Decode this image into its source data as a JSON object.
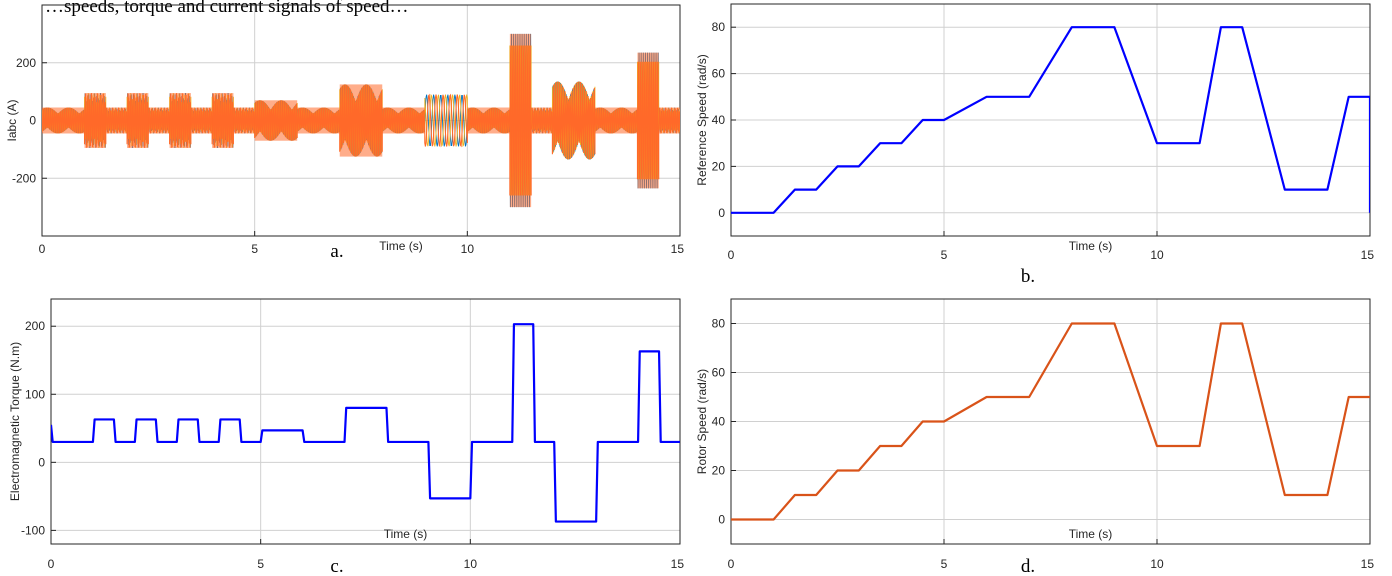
{
  "figure": {
    "top_caption": "…speeds, torque and current signals of speed…"
  },
  "chart_data": [
    {
      "id": "a",
      "type": "line",
      "caption": "a.",
      "xlabel": "Time (s)",
      "ylabel": "Iabc (A)",
      "xlim": [
        0,
        15
      ],
      "ylim": [
        -400,
        400
      ],
      "xticks": [
        0,
        5,
        10,
        15
      ],
      "yticks": [
        -200,
        0,
        200
      ],
      "grid": true,
      "colors": {
        "phase_a": "#ff6929",
        "phase_b": "#0072bd",
        "phase_c": "#edb120"
      },
      "series": [
        {
          "name": "",
          "envelope_amplitude": [
            {
              "x": [
                0,
                1
              ],
              "amp": 45
            },
            {
              "x": [
                1,
                1.5
              ],
              "amp": 95
            },
            {
              "x": [
                1.5,
                2
              ],
              "amp": 45
            },
            {
              "x": [
                2,
                2.5
              ],
              "amp": 95
            },
            {
              "x": [
                2.5,
                3
              ],
              "amp": 45
            },
            {
              "x": [
                3,
                3.5
              ],
              "amp": 95
            },
            {
              "x": [
                3.5,
                4
              ],
              "amp": 45
            },
            {
              "x": [
                4,
                4.5
              ],
              "amp": 95
            },
            {
              "x": [
                4.5,
                5
              ],
              "amp": 45
            },
            {
              "x": [
                5,
                6
              ],
              "amp": 70
            },
            {
              "x": [
                6,
                7
              ],
              "amp": 45
            },
            {
              "x": [
                7,
                8
              ],
              "amp": 125
            },
            {
              "x": [
                8,
                9
              ],
              "amp": 45
            },
            {
              "x": [
                9,
                10
              ],
              "amp": 90
            },
            {
              "x": [
                10,
                11
              ],
              "amp": 45
            },
            {
              "x": [
                11,
                11.5
              ],
              "amp": 300
            },
            {
              "x": [
                11.5,
                12
              ],
              "amp": 45
            },
            {
              "x": [
                12,
                13
              ],
              "amp": 135
            },
            {
              "x": [
                13,
                14
              ],
              "amp": 45
            },
            {
              "x": [
                14,
                14.5
              ],
              "amp": 235
            },
            {
              "x": [
                14.5,
                15
              ],
              "amp": 45
            }
          ]
        }
      ]
    },
    {
      "id": "b",
      "type": "line",
      "caption": "b.",
      "xlabel": "Time (s)",
      "ylabel": "Reference Speed (rad/s)",
      "xlim": [
        0,
        15
      ],
      "ylim": [
        -10,
        90
      ],
      "xticks": [
        0,
        5,
        10,
        15
      ],
      "yticks": [
        0,
        20,
        40,
        60,
        80
      ],
      "grid": true,
      "color": "#0000ff",
      "series": [
        {
          "name": "",
          "x": [
            0,
            1,
            1.5,
            2,
            2.5,
            3,
            3.5,
            4,
            4.5,
            5,
            6,
            7,
            8,
            9,
            10,
            11,
            11.5,
            12,
            13,
            14,
            14.5,
            15,
            15
          ],
          "y": [
            0,
            0,
            10,
            10,
            20,
            20,
            30,
            30,
            40,
            40,
            50,
            50,
            80,
            80,
            30,
            30,
            80,
            80,
            10,
            10,
            50,
            50,
            0
          ]
        }
      ]
    },
    {
      "id": "c",
      "type": "line",
      "caption": "c.",
      "xlabel": "Time (s)",
      "ylabel": "Electromagnetic Torque (N.m)",
      "xlim": [
        0,
        15
      ],
      "ylim": [
        -120,
        240
      ],
      "xticks": [
        0,
        5,
        10,
        15
      ],
      "yticks": [
        -100,
        0,
        100,
        200
      ],
      "grid": true,
      "color": "#0000ff",
      "series": [
        {
          "name": "",
          "x": [
            0,
            0.04,
            1,
            1.04,
            1.5,
            1.54,
            2,
            2.04,
            2.5,
            2.54,
            3,
            3.04,
            3.5,
            3.54,
            4,
            4.04,
            4.5,
            4.54,
            5,
            5.04,
            6,
            6.04,
            7,
            7.04,
            8,
            8.04,
            9,
            9.04,
            10,
            10.04,
            11,
            11.04,
            11.5,
            11.54,
            12,
            12.04,
            13,
            13.04,
            14,
            14.04,
            14.5,
            14.54,
            15
          ],
          "y": [
            55,
            30,
            30,
            63,
            63,
            30,
            30,
            63,
            63,
            30,
            30,
            63,
            63,
            30,
            30,
            63,
            63,
            30,
            30,
            47,
            47,
            30,
            30,
            80,
            80,
            30,
            30,
            -53,
            -53,
            30,
            30,
            203,
            203,
            30,
            30,
            -87,
            -87,
            30,
            30,
            163,
            163,
            30,
            30
          ]
        }
      ]
    },
    {
      "id": "d",
      "type": "line",
      "caption": "d.",
      "xlabel": "Time (s)",
      "ylabel": "Rotor Speed (rad/s)",
      "xlim": [
        0,
        15
      ],
      "ylim": [
        -10,
        90
      ],
      "xticks": [
        0,
        5,
        10,
        15
      ],
      "yticks": [
        0,
        20,
        40,
        60,
        80
      ],
      "grid": true,
      "color": "#d95319",
      "series": [
        {
          "name": "",
          "x": [
            0,
            1,
            1.5,
            2,
            2.5,
            3,
            3.5,
            4,
            4.5,
            5,
            6,
            7,
            8,
            9,
            10,
            11,
            11.5,
            12,
            13,
            14,
            14.5,
            15
          ],
          "y": [
            0,
            0,
            10,
            10,
            20,
            20,
            30,
            30,
            40,
            40,
            50,
            50,
            80,
            80,
            30,
            30,
            80,
            80,
            10,
            10,
            50,
            50
          ]
        }
      ]
    }
  ]
}
